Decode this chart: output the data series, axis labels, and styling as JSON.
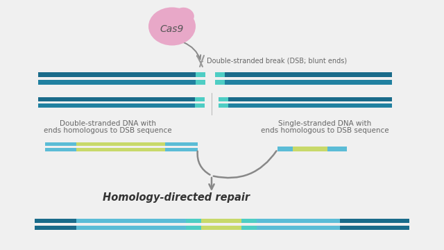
{
  "bg_color": "#f0f0f0",
  "dark_teal": "#1a6b8a",
  "mid_teal": "#2080a0",
  "light_teal": "#5bbcd6",
  "cyan_accent": "#4ecdc4",
  "green_accent": "#c8d96a",
  "gray_arrow": "#888888",
  "pink_cas9": "#e8a8c8",
  "text_color": "#666666",
  "title_color": "#333333",
  "dsb_label": "Double-stranded break (DSB; blunt ends)",
  "dsDNA_label_line1": "Double-stranded DNA with",
  "dsDNA_label_line2": "ends homologous to DSB sequence",
  "ssDNA_label_line1": "Single-stranded DNA with",
  "ssDNA_label_line2": "ends homologous to DSB sequence",
  "hdr_label": "Homology-directed repair",
  "cas9_label": "Cas9"
}
